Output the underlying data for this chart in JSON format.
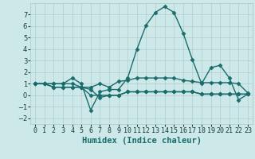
{
  "xlabel": "Humidex (Indice chaleur)",
  "x_values": [
    0,
    1,
    2,
    3,
    4,
    5,
    6,
    7,
    8,
    9,
    10,
    11,
    12,
    13,
    14,
    15,
    16,
    17,
    18,
    19,
    20,
    21,
    22,
    23
  ],
  "series": [
    [
      1.0,
      1.0,
      1.0,
      1.0,
      1.5,
      1.0,
      -1.3,
      0.3,
      0.5,
      0.5,
      1.5,
      4.0,
      6.1,
      7.2,
      7.7,
      7.2,
      5.4,
      3.1,
      1.0,
      2.4,
      2.6,
      1.5,
      -0.4,
      0.1
    ],
    [
      1.0,
      1.0,
      1.0,
      1.0,
      1.0,
      0.7,
      0.7,
      1.0,
      0.7,
      1.2,
      1.3,
      1.5,
      1.5,
      1.5,
      1.5,
      1.5,
      1.3,
      1.2,
      1.1,
      1.1,
      1.1,
      1.1,
      1.0,
      0.2
    ],
    [
      1.0,
      1.0,
      0.7,
      0.7,
      0.7,
      0.7,
      0.5,
      -0.2,
      0.0,
      0.0,
      0.3,
      0.3,
      0.3,
      0.3,
      0.3,
      0.3,
      0.3,
      0.3,
      0.1,
      0.1,
      0.1,
      0.1,
      0.1,
      0.1
    ],
    [
      1.0,
      1.0,
      0.7,
      0.7,
      0.7,
      0.7,
      0.0,
      0.0,
      0.0,
      0.0,
      0.3,
      0.3,
      0.3,
      0.3,
      0.3,
      0.3,
      0.3,
      0.3,
      0.1,
      0.1,
      0.1,
      0.1,
      0.1,
      0.1
    ]
  ],
  "line_color": "#1a6b6b",
  "marker": "D",
  "markersize": 2.5,
  "linewidth": 1.0,
  "background_color": "#cce8e8",
  "grid_color": "#b0cccc",
  "ylim": [
    -2.5,
    8.0
  ],
  "yticks": [
    -2,
    -1,
    0,
    1,
    2,
    3,
    4,
    5,
    6,
    7
  ],
  "xtick_labels": [
    "0",
    "1",
    "2",
    "3",
    "4",
    "5",
    "6",
    "7",
    "8",
    "9",
    "10",
    "11",
    "12",
    "13",
    "14",
    "15",
    "16",
    "17",
    "18",
    "19",
    "20",
    "21",
    "22",
    "23"
  ],
  "tick_fontsize": 6.0,
  "xlabel_fontsize": 7.5
}
